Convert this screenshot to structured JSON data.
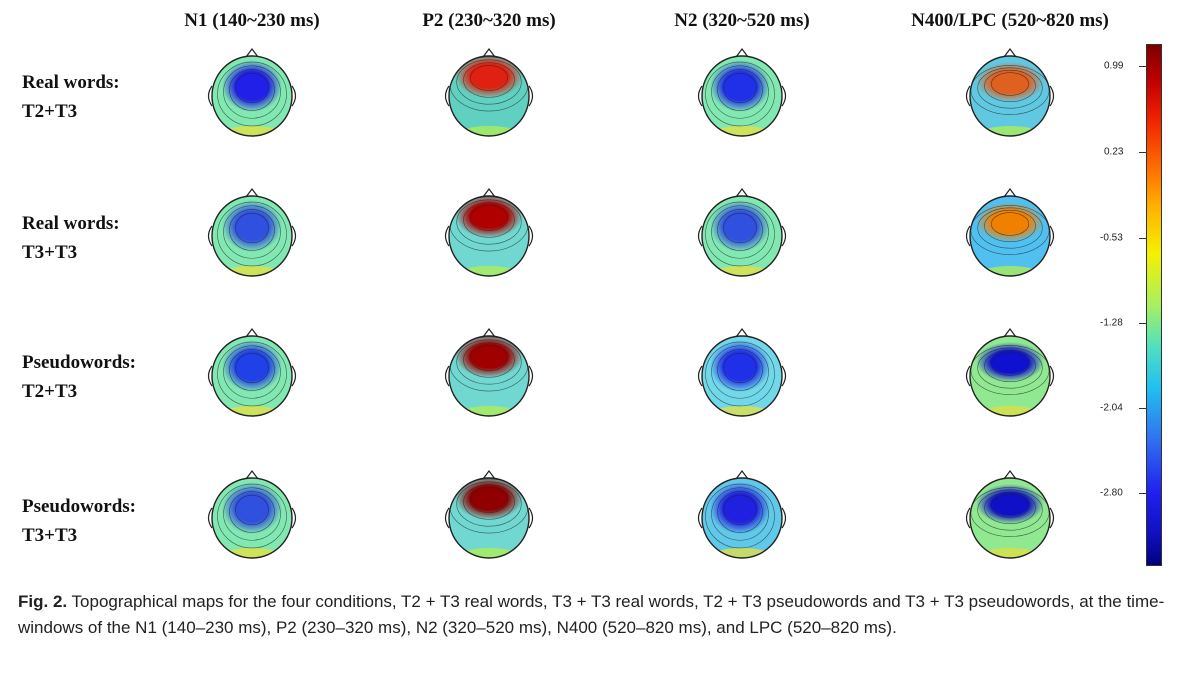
{
  "columns": [
    "N1 (140~230 ms)",
    "P2 (230~320 ms)",
    "N2 (320~520 ms)",
    "N400/LPC (520~820 ms)"
  ],
  "rows": [
    {
      "line1": "Real words:",
      "line2": "T2+T3"
    },
    {
      "line1": "Real words:",
      "line2": "T3+T3"
    },
    {
      "line1": "Pseudowords:",
      "line2": "T2+T3"
    },
    {
      "line1": "Pseudowords:",
      "line2": "T3+T3"
    }
  ],
  "colorbar": {
    "ticks": [
      "0.99",
      "0.23",
      "-0.53",
      "-1.28",
      "-2.04",
      "-2.80"
    ],
    "colors": {
      "max": "#7f0000",
      "mid": "#a8f060",
      "min": "#000080"
    }
  },
  "caption": {
    "label": "Fig. 2.",
    "text": " Topographical maps for the four conditions, T2 + T3 real words, T3 + T3 real words, T2 + T3 pseudowords and T3 + T3 pseudowords, at the time-windows of the N1 (140–230 ms), P2 (230–320 ms), N2 (320–520 ms), N400 (520–820 ms), and LPC (520–820 ms)."
  },
  "maps": [
    {
      "bg": "#80e8b0",
      "blob": "#2020e8",
      "rim": "#e8e040"
    },
    {
      "bg": "#60d0c0",
      "blob": "#e02010",
      "rim": "#b0f050"
    },
    {
      "bg": "#80e8b0",
      "blob": "#2030e8",
      "rim": "#e8e040"
    },
    {
      "bg": "#60c8e0",
      "blob": "#e06020",
      "rim": "#b0f050"
    },
    {
      "bg": "#80e8b0",
      "blob": "#3050e0",
      "rim": "#e8e040"
    },
    {
      "bg": "#70d8d0",
      "blob": "#b00000",
      "rim": "#b0f050"
    },
    {
      "bg": "#80e8b0",
      "blob": "#3050e0",
      "rim": "#e8e040"
    },
    {
      "bg": "#50c0f0",
      "blob": "#f08000",
      "rim": "#b0f050"
    },
    {
      "bg": "#80e8b0",
      "blob": "#2040e8",
      "rim": "#e8e040"
    },
    {
      "bg": "#70d8d0",
      "blob": "#a00000",
      "rim": "#b0f050"
    },
    {
      "bg": "#70d8e8",
      "blob": "#2030e8",
      "rim": "#e8e040"
    },
    {
      "bg": "#90e890",
      "blob": "#1010d0",
      "rim": "#e0e040"
    },
    {
      "bg": "#80e8b0",
      "blob": "#3050e0",
      "rim": "#e8e040"
    },
    {
      "bg": "#70d8d0",
      "blob": "#900000",
      "rim": "#b0f050"
    },
    {
      "bg": "#60c8e8",
      "blob": "#2020e0",
      "rim": "#e8e040"
    },
    {
      "bg": "#90e890",
      "blob": "#1010c8",
      "rim": "#e0e040"
    }
  ]
}
